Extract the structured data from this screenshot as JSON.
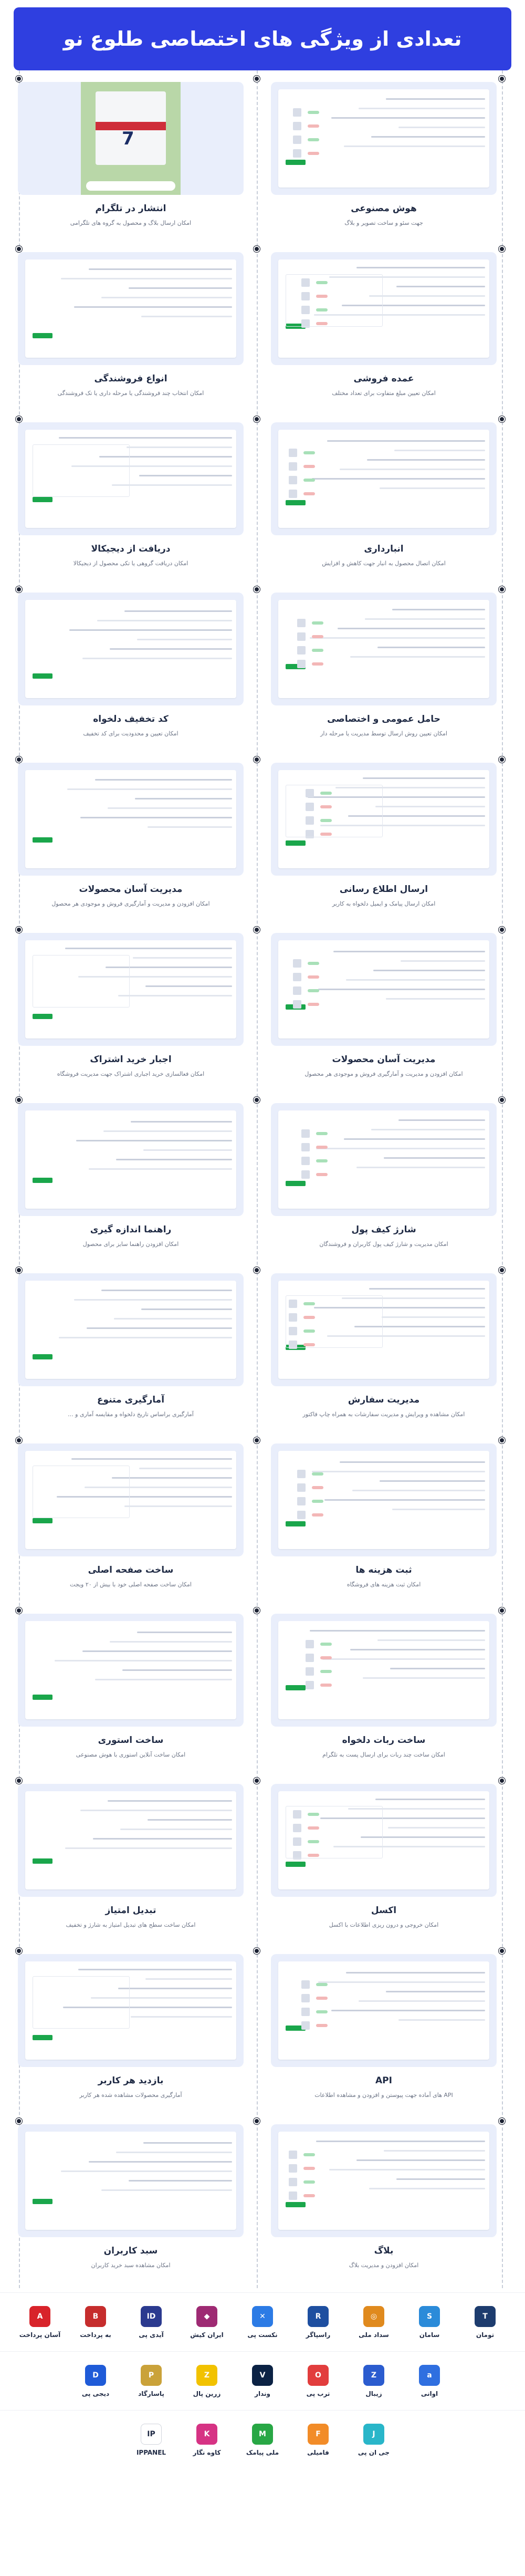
{
  "header": {
    "title": "تعدادی از ویژگی های اختصاصی طلوع نو"
  },
  "features": [
    {
      "right": {
        "title": "هوش مصنوعی",
        "desc": "جهت سئو و ساخت تصویر و بلاگ"
      },
      "left": {
        "title": "انتشار در تلگرام",
        "desc": "امکان ارسال بلاگ و محصول به گروه های تلگرامی"
      }
    },
    {
      "right": {
        "title": "عمده فروشی",
        "desc": "امکان تعیین مبلغ متفاوت برای تعداد مختلف"
      },
      "left": {
        "title": "انواع فروشندگی",
        "desc": "امکان انتخاب چند فروشندگی یا مرحله داری یا تک فروشندگی"
      }
    },
    {
      "right": {
        "title": "انبارداری",
        "desc": "امکان اتصال محصول به انبار جهت کاهش و افزایش"
      },
      "left": {
        "title": "دریافت از دیجیکالا",
        "desc": "امکان دریافت گروهی یا تکی محصول از دیجیکالا"
      }
    },
    {
      "right": {
        "title": "حامل عمومی و اختصاصی",
        "desc": "امکان تعیین روش ارسال توسط مدیریت یا مرحله دار"
      },
      "left": {
        "title": "کد تخفیف دلخواه",
        "desc": "امکان تعیین و محدودیت برای کد تخفیف"
      }
    },
    {
      "right": {
        "title": "ارسال اطلاع رسانی",
        "desc": "امکان ارسال پیامک و ایمیل دلخواه به کاربر"
      },
      "left": {
        "title": "مدیریت آسان محصولات",
        "desc": "امکان افزودن و مدیریت و آمارگیری فروش و موجودی هر محصول"
      }
    },
    {
      "right": {
        "title": "مدیریت آسان محصولات",
        "desc": "امکان افزودن و مدیریت و آمارگیری فروش و موجودی هر محصول"
      },
      "left": {
        "title": "اجبار خرید اشتراک",
        "desc": "امکان فعالسازی خرید اجباری اشتراک جهت مدیریت فروشگاه"
      }
    },
    {
      "right": {
        "title": "شارژ کیف پول",
        "desc": "امکان مدیریت و شارژ کیف پول کاربران و فروشندگان"
      },
      "left": {
        "title": "راهنما اندازه گیری",
        "desc": "امکان افزودن راهنما سایز برای محصول"
      }
    },
    {
      "right": {
        "title": "مدیریت سفارش",
        "desc": "امکان مشاهده و ویرایش و مدیریت سفارشات به همراه چاپ فاکتور"
      },
      "left": {
        "title": "آمارگیری متنوع",
        "desc": "آمارگیری براساس تاریخ دلخواه و مقایسه آماری و ..."
      }
    },
    {
      "right": {
        "title": "ثبت هزینه ها",
        "desc": "امکان ثبت هزینه های فروشگاه"
      },
      "left": {
        "title": "ساخت صفحه اصلی",
        "desc": "امکان ساخت صفحه اصلی خود با بیش از ۲۰ ویجت"
      }
    },
    {
      "right": {
        "title": "ساخت ربات دلخواه",
        "desc": "امکان ساخت چند ربات برای ارسال پست به تلگرام"
      },
      "left": {
        "title": "ساخت استوری",
        "desc": "امکان ساخت آنلاین استوری با هوش مصنوعی"
      }
    },
    {
      "right": {
        "title": "اکسل",
        "desc": "امکان خروجی و درون ریزی اطلاعات با اکسل"
      },
      "left": {
        "title": "تبدیل امتیاز",
        "desc": "امکان ساخت سطح های تبدیل امتیاز به شارژ و تخفیف"
      }
    },
    {
      "right": {
        "title": "API",
        "desc": "API های آماده جهت پیوستن و افزودن و مشاهده اطلاعات"
      },
      "left": {
        "title": "بازدید هر کاربر",
        "desc": "آمارگیری محصولات مشاهده شده هر کاربر"
      }
    },
    {
      "right": {
        "title": "بلاگ",
        "desc": "امکان افزودن و مدیریت بلاگ"
      },
      "left": {
        "title": "سبد کاربران",
        "desc": "امکان مشاهده سبد خرید کاربران"
      }
    }
  ],
  "payments": {
    "row1": [
      {
        "name": "تومان",
        "icon": "toman-logo",
        "color": "#1d3c6e",
        "glyph": "T"
      },
      {
        "name": "سامان",
        "icon": "saman-logo",
        "color": "#2b8bd9",
        "glyph": "S"
      },
      {
        "name": "سداد ملی",
        "icon": "sadad-logo",
        "color": "#e08a1e",
        "glyph": "◎"
      },
      {
        "name": "راسپاگر",
        "icon": "rasapargar-logo",
        "color": "#1e4fa0",
        "glyph": "R"
      },
      {
        "name": "نکست پی",
        "icon": "nextpay-logo",
        "color": "#2c7be5",
        "glyph": "✕"
      },
      {
        "name": "ایران کیش",
        "icon": "irankish-logo",
        "color": "#9e2a73",
        "glyph": "◆"
      },
      {
        "name": "آیدی پی",
        "icon": "idpay-logo",
        "color": "#2b3a8f",
        "glyph": "ID"
      },
      {
        "name": "به پرداخت",
        "icon": "behpardakht-logo",
        "color": "#c62d2d",
        "glyph": "B"
      },
      {
        "name": "آسان پرداخت",
        "icon": "asanpardakht-logo",
        "color": "#d8232a",
        "glyph": "A"
      }
    ],
    "row2": [
      {
        "name": "اوانی",
        "icon": "avani-logo",
        "color": "#2f6fe0",
        "glyph": "a"
      },
      {
        "name": "زیبال",
        "icon": "zibal-logo",
        "color": "#2b5ccf",
        "glyph": "Z"
      },
      {
        "name": "ترب پی",
        "icon": "torobpay-logo",
        "color": "#e23d3d",
        "glyph": "O"
      },
      {
        "name": "وندار",
        "icon": "vandar-logo",
        "color": "#0b2244",
        "glyph": "V"
      },
      {
        "name": "زرین پال",
        "icon": "zarinpal-logo",
        "color": "#f2c200",
        "glyph": "Z"
      },
      {
        "name": "پاسارگاد",
        "icon": "pasargad-logo",
        "color": "#caa23a",
        "glyph": "P"
      },
      {
        "name": "دیجی پی",
        "icon": "digipay-logo",
        "color": "#1f5bd8",
        "glyph": "D"
      }
    ],
    "row3": [
      {
        "name": "جی ان پی",
        "icon": "jnp-logo",
        "color": "#29b6c9",
        "glyph": "J"
      },
      {
        "name": "فامیلی",
        "icon": "family-logo",
        "color": "#f28c28",
        "glyph": "F"
      },
      {
        "name": "ملی پیامک",
        "icon": "melipayamak-logo",
        "color": "#28a745",
        "glyph": "M"
      },
      {
        "name": "کاوه نگار",
        "icon": "kavenegar-logo",
        "color": "#d63384",
        "glyph": "K"
      },
      {
        "name": "IPPANEL",
        "icon": "ippanel-logo",
        "color": "#ffffff",
        "glyph": "IP"
      }
    ]
  }
}
